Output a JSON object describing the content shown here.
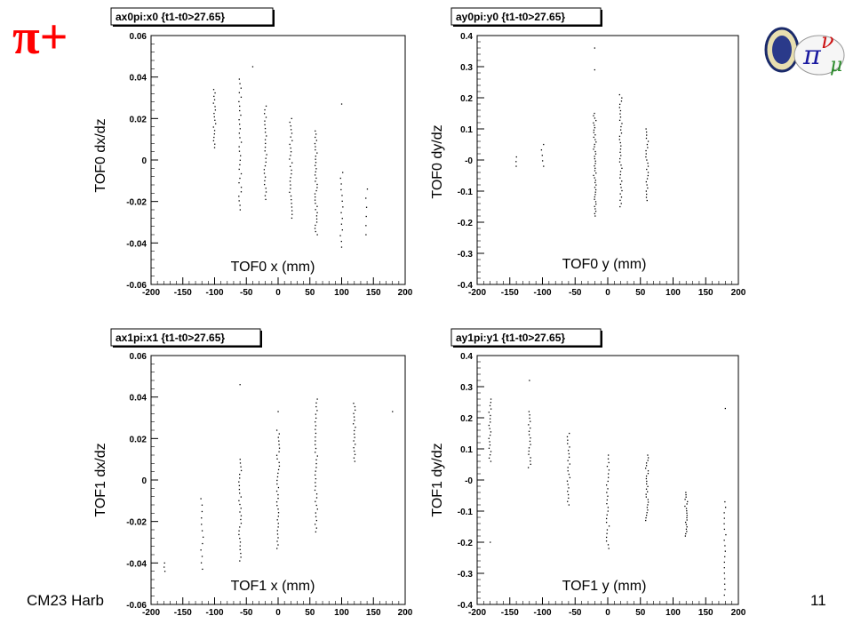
{
  "slide": {
    "title": "π+",
    "footer": "CM23 Harb",
    "page_number": "11"
  },
  "chart_data": [
    {
      "type": "scatter",
      "title": "ax0pi:x0 {t1-t0>27.65}",
      "xlabel": "TOF0 x (mm)",
      "ylabel": "TOF0 dx/dz",
      "xlim": [
        -200,
        200
      ],
      "ylim": [
        -0.06,
        0.06
      ],
      "xticks": [
        -200,
        -150,
        -100,
        -50,
        0,
        50,
        100,
        150,
        200
      ],
      "yticks": [
        -0.06,
        -0.04,
        -0.02,
        0,
        0.02,
        0.04,
        0.06
      ],
      "ytick_labels": [
        "-0.06",
        "-0.04",
        "-0.02",
        "0",
        "0.02",
        "0.04",
        "0.06"
      ],
      "columns": [
        {
          "x": -100,
          "ymin": 0.006,
          "ymax": 0.034,
          "n": 18
        },
        {
          "x": -60,
          "ymin": -0.024,
          "ymax": 0.039,
          "n": 30
        },
        {
          "x": -20,
          "ymin": -0.019,
          "ymax": 0.026,
          "n": 26
        },
        {
          "x": 20,
          "ymin": -0.028,
          "ymax": 0.02,
          "n": 28
        },
        {
          "x": 60,
          "ymin": -0.036,
          "ymax": 0.014,
          "n": 34
        },
        {
          "x": 100,
          "ymin": -0.042,
          "ymax": -0.006,
          "n": 14
        },
        {
          "x": 140,
          "ymin": -0.036,
          "ymax": -0.014,
          "n": 6
        }
      ],
      "points": [
        [
          -40,
          0.045
        ],
        [
          100,
          0.027
        ]
      ]
    },
    {
      "type": "scatter",
      "title": "ay0pi:y0 {t1-t0>27.65}",
      "xlabel": "TOF0 y (mm)",
      "ylabel": "TOF0 dy/dz",
      "xlim": [
        -200,
        200
      ],
      "ylim": [
        -0.4,
        0.4
      ],
      "xticks": [
        -200,
        -150,
        -100,
        -50,
        0,
        50,
        100,
        150,
        200
      ],
      "yticks": [
        -0.4,
        -0.3,
        -0.2,
        -0.1,
        0,
        0.1,
        0.2,
        0.3,
        0.4
      ],
      "ytick_labels": [
        "-0.4",
        "-0.3",
        "-0.2",
        "-0.1",
        "-0",
        "0.1",
        "0.2",
        "0.3",
        "0.4"
      ],
      "columns": [
        {
          "x": -140,
          "ymin": -0.02,
          "ymax": 0.01,
          "n": 3
        },
        {
          "x": -100,
          "ymin": -0.02,
          "ymax": 0.05,
          "n": 5
        },
        {
          "x": -20,
          "ymin": -0.18,
          "ymax": 0.15,
          "n": 44
        },
        {
          "x": 20,
          "ymin": -0.15,
          "ymax": 0.21,
          "n": 36
        },
        {
          "x": 60,
          "ymin": -0.13,
          "ymax": 0.1,
          "n": 24
        }
      ],
      "points": [
        [
          -20,
          0.36
        ],
        [
          -20,
          0.29
        ]
      ]
    },
    {
      "type": "scatter",
      "title": "ax1pi:x1 {t1-t0>27.65}",
      "xlabel": "TOF1 x (mm)",
      "ylabel": "TOF1 dx/dz",
      "xlim": [
        -200,
        200
      ],
      "ylim": [
        -0.06,
        0.06
      ],
      "xticks": [
        -200,
        -150,
        -100,
        -50,
        0,
        50,
        100,
        150,
        200
      ],
      "yticks": [
        -0.06,
        -0.04,
        -0.02,
        0,
        0.02,
        0.04,
        0.06
      ],
      "ytick_labels": [
        "-0.06",
        "-0.04",
        "-0.02",
        "0",
        "0.02",
        "0.04",
        "0.06"
      ],
      "columns": [
        {
          "x": -180,
          "ymin": -0.044,
          "ymax": -0.04,
          "n": 3
        },
        {
          "x": -120,
          "ymin": -0.043,
          "ymax": -0.009,
          "n": 12
        },
        {
          "x": -60,
          "ymin": -0.039,
          "ymax": 0.01,
          "n": 28
        },
        {
          "x": 0,
          "ymin": -0.033,
          "ymax": 0.024,
          "n": 34
        },
        {
          "x": 60,
          "ymin": -0.025,
          "ymax": 0.039,
          "n": 36
        },
        {
          "x": 120,
          "ymin": 0.009,
          "ymax": 0.037,
          "n": 18
        }
      ],
      "points": [
        [
          -60,
          0.046
        ],
        [
          0,
          0.033
        ],
        [
          180,
          0.033
        ]
      ]
    },
    {
      "type": "scatter",
      "title": "ay1pi:y1 {t1-t0>27.65}",
      "xlabel": "TOF1 y (mm)",
      "ylabel": "TOF1 dy/dz",
      "xlim": [
        -200,
        200
      ],
      "ylim": [
        -0.4,
        0.4
      ],
      "xticks": [
        -200,
        -150,
        -100,
        -50,
        0,
        50,
        100,
        150,
        200
      ],
      "yticks": [
        -0.4,
        -0.3,
        -0.2,
        -0.1,
        0,
        0.1,
        0.2,
        0.3,
        0.4
      ],
      "ytick_labels": [
        "-0.4",
        "-0.3",
        "-0.2",
        "-0.1",
        "-0",
        "0.1",
        "0.2",
        "0.3",
        "0.4"
      ],
      "columns": [
        {
          "x": -180,
          "ymin": 0.06,
          "ymax": 0.26,
          "n": 20
        },
        {
          "x": -120,
          "ymin": 0.04,
          "ymax": 0.22,
          "n": 18
        },
        {
          "x": -60,
          "ymin": -0.08,
          "ymax": 0.15,
          "n": 22
        },
        {
          "x": 0,
          "ymin": -0.22,
          "ymax": 0.08,
          "n": 26
        },
        {
          "x": 60,
          "ymin": -0.13,
          "ymax": 0.08,
          "n": 26
        },
        {
          "x": 120,
          "ymin": -0.18,
          "ymax": -0.04,
          "n": 20
        },
        {
          "x": 180,
          "ymin": -0.37,
          "ymax": -0.07,
          "n": 18
        }
      ],
      "points": [
        [
          -180,
          -0.2
        ],
        [
          -120,
          0.32
        ],
        [
          180,
          0.23
        ]
      ]
    }
  ],
  "colors": {
    "title": "#ff0000",
    "markers": "#000000",
    "frame": "#000000"
  },
  "icons": {
    "logos": "mice-neutrino-logo"
  }
}
